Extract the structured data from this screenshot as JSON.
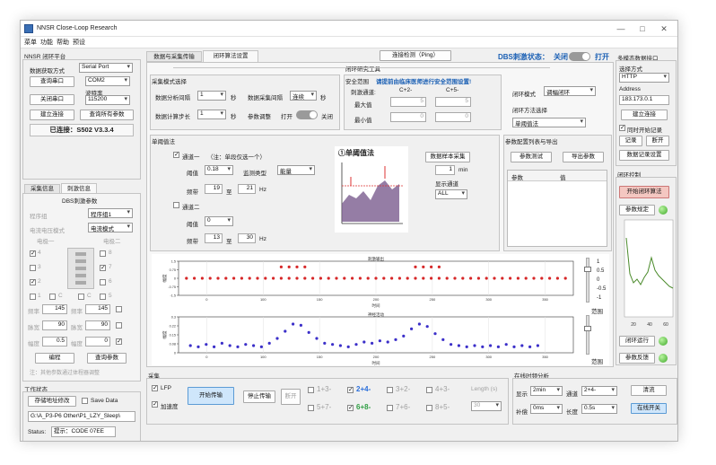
{
  "window": {
    "title": "NNSR Close-Loop Research",
    "min": "—",
    "max": "□",
    "close": "✕"
  },
  "menu": [
    "菜单",
    "功能",
    "帮助",
    "预设"
  ],
  "left": {
    "platform": "NNSR 闭环平台",
    "acq_mode_label": "数据获取方式",
    "acq_mode": "Serial Port",
    "query_port": "查询串口",
    "com": "COM2",
    "baud_label": "波特率",
    "close_port": "关闭串口",
    "baud": "115200",
    "connect": "建立连接",
    "query_all": "查询所有参数",
    "connected": "已连接：S502 V3.3.4",
    "tabs": [
      "采集信息",
      "刺激信息"
    ],
    "dbs_params": "DBS刺激参数",
    "program_group_label": "程序组",
    "program_group": "程序组1",
    "current_voltage_label": "电流电压模式",
    "current_voltage": "电流模式",
    "electrode1": "电极一",
    "electrode2": "电极二",
    "contacts_left": [
      "4",
      "3",
      "2",
      "1"
    ],
    "contacts_right": [
      "8",
      "7",
      "6",
      "5"
    ],
    "c_label": "C",
    "freq_label": "频率",
    "freq1": "145",
    "freq2": "145",
    "pw_label": "脉宽",
    "pw1": "90",
    "pw2": "90",
    "amp_label": "幅度",
    "amp1": "0.5",
    "amp2": "0",
    "program": "编程",
    "query_params": "查询参数",
    "note": "注：其他参数通过体程器调整",
    "work_status": "工作状态",
    "save_path_btn": "存储地址修改",
    "save_data": "Save Data",
    "path": "G:\\A_P3-P6 Other\\P1_LZY_Sleep\\",
    "status_label": "Status:",
    "status": "提示：CODE 07EE"
  },
  "tabs": [
    "数据与采集传输",
    "闭环算法设置"
  ],
  "ping": "连接检测（Ping）",
  "dbs_state_label": "DBS刺激状态：",
  "dbs_state_off": "关闭",
  "dbs_state_on": "打开",
  "research_tools": "闭环研究工具",
  "sampling": {
    "title": "采集模式选择",
    "interval_label": "数据分析间隔",
    "interval": "1",
    "unit_s": "秒",
    "samp_label": "数据采集间隔",
    "samp": "连续",
    "step_label": "数据计算步长",
    "step": "1",
    "param_remind": "参数调整",
    "open": "打开",
    "close": "关闭"
  },
  "safety": {
    "title": "安全范围",
    "warn": "请提前由临床医师进行安全范围设置!",
    "channel_label": "刺激通道:",
    "c2": "C+2-",
    "c5": "C+5-",
    "max_label": "最大值",
    "min_label": "最小值",
    "max2": "5",
    "max5": "5",
    "min2": "0",
    "min5": "0"
  },
  "loop": {
    "mode_label": "闭环模式",
    "mode": "调幅闭环",
    "method_label": "闭环方法选择",
    "method": "单阈值法"
  },
  "threshold": {
    "title": "单阈值法",
    "ch1": "通道一",
    "ch1_note": "（注：单段仅选一个）",
    "th_label": "阈值",
    "th1": "0.18",
    "type_label": "监测类型",
    "type": "能量",
    "band_label": "频带",
    "b1a": "19",
    "to": "至",
    "b1b": "21",
    "hz": "Hz",
    "ch2": "通道二",
    "th2": "0",
    "b2a": "13",
    "b2b": "30",
    "method_name": "①单阈值法",
    "sample_btn": "数据样本采集",
    "minutes": "1",
    "min": "min",
    "show_channel": "显示通道",
    "all": "ALL"
  },
  "param_cfg": {
    "title": "参数配置列表与导出",
    "test": "参数测试",
    "export": "导出参数",
    "col1": "参数",
    "col2": "值"
  },
  "right": {
    "multi": "多模态数据接口",
    "select": "选择方式",
    "http": "HTTP",
    "addr_label": "Address",
    "addr": "183.173.0.1",
    "connect": "建立连接",
    "sync": "同时开始记录",
    "record": "记录",
    "disconnect": "断开",
    "record_set": "数据记录设置",
    "loop_ctrl": "闭环控制",
    "start_algo": "开始闭环算法",
    "param_plan": "参数规定",
    "loop_run": "闭环运行",
    "param_feedback": "参数反馈",
    "range_label": "范围"
  },
  "plots": {
    "top_title": "刺激输出",
    "bot_title": "神经活动",
    "xlabel": "时间",
    "ylabel": "幅度",
    "range": "范围",
    "slider_ticks": [
      "1",
      "0.5",
      "0",
      "-0.5",
      "-1"
    ]
  },
  "acq": {
    "title": "采集",
    "lfp": "LFP",
    "accel": "加速度",
    "start": "开始传输",
    "stop": "停止传输",
    "reconnect": "断开",
    "chans": [
      "1+3-",
      "2+4-",
      "3+2-",
      "4+3-",
      "5+7-",
      "6+8-",
      "7+6-",
      "8+5-"
    ],
    "len_label": "Length (s)",
    "len": "30"
  },
  "online": {
    "title": "在线时频分析",
    "show_label": "显示",
    "show": "2min",
    "ch_label": "通道",
    "ch": "2+4-",
    "clear": "清流",
    "fill_label": "补偿",
    "fill": "0ms",
    "len_label": "长度",
    "len": "0.5s",
    "switch": "在线开关"
  },
  "spectrum": {
    "x_ticks": [
      "20",
      "40",
      "60"
    ]
  },
  "chart_data": [
    {
      "type": "scatter",
      "title": "刺激输出",
      "xlabel": "时间",
      "ylabel": "幅度",
      "ylim": [
        -1.5,
        1.5
      ],
      "x_ticks": [
        "0",
        "100",
        "150",
        "200",
        "250",
        "300",
        "350"
      ],
      "series": [
        {
          "points": [
            [
              2,
              0
            ],
            [
              4,
              0
            ],
            [
              6,
              0
            ],
            [
              8,
              0
            ],
            [
              10,
              0
            ],
            [
              12,
              0
            ],
            [
              14,
              0
            ],
            [
              16,
              0
            ],
            [
              18,
              0
            ],
            [
              20,
              0
            ],
            [
              22,
              0
            ],
            [
              24,
              0
            ],
            [
              26,
              0
            ],
            [
              28,
              0
            ],
            [
              30,
              0
            ],
            [
              32,
              0
            ],
            [
              34,
              0
            ],
            [
              36,
              0
            ],
            [
              38,
              0
            ],
            [
              40,
              0
            ],
            [
              42,
              0
            ],
            [
              44,
              0
            ],
            [
              46,
              0
            ],
            [
              48,
              0
            ],
            [
              50,
              0
            ],
            [
              52,
              0
            ],
            [
              54,
              0
            ],
            [
              56,
              0
            ],
            [
              58,
              0
            ],
            [
              60,
              0
            ],
            [
              62,
              0
            ],
            [
              64,
              0
            ],
            [
              66,
              0
            ],
            [
              68,
              0
            ],
            [
              70,
              0
            ],
            [
              72,
              0
            ],
            [
              74,
              0
            ],
            [
              76,
              0
            ],
            [
              78,
              0
            ],
            [
              80,
              0
            ],
            [
              82,
              0
            ],
            [
              84,
              0
            ],
            [
              86,
              0
            ],
            [
              88,
              0
            ],
            [
              90,
              0
            ],
            [
              92,
              0
            ],
            [
              94,
              0
            ],
            [
              96,
              0
            ],
            [
              98,
              0
            ],
            [
              26,
              1
            ],
            [
              28,
              1
            ],
            [
              30,
              1
            ],
            [
              32,
              1
            ],
            [
              60,
              1
            ],
            [
              62,
              1
            ],
            [
              64,
              1
            ],
            [
              66,
              1
            ]
          ]
        }
      ]
    },
    {
      "type": "scatter",
      "title": "神经活动",
      "xlabel": "时间",
      "ylabel": "幅度",
      "ylim": [
        0,
        0.3
      ],
      "x_ticks": [
        "0",
        "100",
        "150",
        "200",
        "250",
        "300",
        "350"
      ],
      "series": [
        {
          "points": [
            [
              3,
              0.06
            ],
            [
              5,
              0.05
            ],
            [
              7,
              0.07
            ],
            [
              9,
              0.05
            ],
            [
              11,
              0.08
            ],
            [
              13,
              0.06
            ],
            [
              15,
              0.05
            ],
            [
              17,
              0.07
            ],
            [
              19,
              0.06
            ],
            [
              21,
              0.05
            ],
            [
              23,
              0.08
            ],
            [
              25,
              0.12
            ],
            [
              27,
              0.18
            ],
            [
              29,
              0.24
            ],
            [
              31,
              0.23
            ],
            [
              33,
              0.17
            ],
            [
              35,
              0.12
            ],
            [
              37,
              0.08
            ],
            [
              39,
              0.07
            ],
            [
              41,
              0.06
            ],
            [
              43,
              0.05
            ],
            [
              45,
              0.07
            ],
            [
              47,
              0.09
            ],
            [
              49,
              0.08
            ],
            [
              51,
              0.1
            ],
            [
              53,
              0.09
            ],
            [
              55,
              0.11
            ],
            [
              57,
              0.14
            ],
            [
              59,
              0.2
            ],
            [
              61,
              0.24
            ],
            [
              63,
              0.22
            ],
            [
              65,
              0.16
            ],
            [
              67,
              0.11
            ],
            [
              69,
              0.07
            ],
            [
              71,
              0.06
            ],
            [
              73,
              0.05
            ],
            [
              75,
              0.06
            ],
            [
              77,
              0.05
            ],
            [
              79,
              0.06
            ],
            [
              81,
              0.05
            ],
            [
              83,
              0.07
            ],
            [
              85,
              0.05
            ],
            [
              87,
              0.06
            ],
            [
              89,
              0.05
            ],
            [
              91,
              0.06
            ]
          ]
        }
      ]
    }
  ]
}
